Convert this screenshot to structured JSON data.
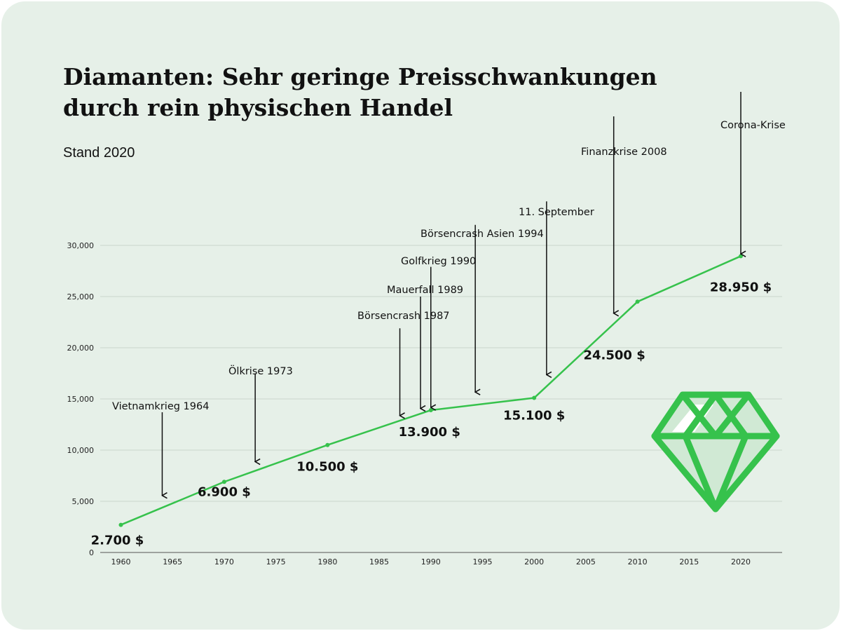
{
  "header": {
    "title": "Diamanten: Sehr geringe Preisschwankungen durch rein physischen Handel",
    "subtitle": "Stand 2020"
  },
  "colors": {
    "line": "#36c24c",
    "background": "#e6f0e8",
    "gem": "#36c24c"
  },
  "icons": [
    "diamond-icon"
  ],
  "chart_data": {
    "type": "line",
    "title": "Diamanten: Sehr geringe Preisschwankungen durch rein physischen Handel",
    "subtitle": "Stand 2020",
    "xlabel": "",
    "ylabel": "",
    "xlim": [
      1958,
      2024
    ],
    "ylim": [
      0,
      30000
    ],
    "x_ticks": [
      1960,
      1965,
      1970,
      1975,
      1980,
      1985,
      1990,
      1995,
      2000,
      2005,
      2010,
      2015,
      2020
    ],
    "y_ticks": [
      0,
      5000,
      10000,
      15000,
      20000,
      25000,
      30000
    ],
    "y_tick_labels": [
      "0",
      "5,000",
      "10,000",
      "15,000",
      "20,000",
      "25,000",
      "30,000"
    ],
    "grid": "horizontal",
    "series": [
      {
        "x": [
          1960,
          1970,
          1980,
          1990,
          2000,
          2010,
          2020
        ],
        "y": [
          2700,
          6900,
          10500,
          13900,
          15100,
          24500,
          28950
        ],
        "value_labels": [
          "2.700 $",
          "6.900 $",
          "10.500 $",
          "13.900 $",
          "15.100 $",
          "24.500 $",
          "28.950 $"
        ]
      }
    ],
    "annotations": [
      {
        "text": "Vietnamkrieg 1964",
        "x": 1964,
        "y_top": 13700,
        "y_tip": 5500
      },
      {
        "text": "Ölkrise 1973",
        "x": 1973,
        "y_top": 17500,
        "y_tip": 8800
      },
      {
        "text": "Börsencrash 1987",
        "x": 1987,
        "y_top": 21900,
        "y_tip": 13300
      },
      {
        "text": "Mauerfall 1989",
        "x": 1989,
        "y_top": 25000,
        "y_tip": 14000
      },
      {
        "text": "Golfkrieg 1990",
        "x": 1990,
        "y_top": 27900,
        "y_tip": 14100
      },
      {
        "text": "Börsencrash Asien 1994",
        "x": 1994.3,
        "y_top": 32000,
        "y_tip": 15600
      },
      {
        "text": "11. September",
        "x": 2001.2,
        "y_top": 34300,
        "y_tip": 17300
      },
      {
        "text": "Finanzkrise 2008",
        "x": 2007.7,
        "y_top": 42600,
        "y_tip": 23300
      },
      {
        "text": "Corona-Krise",
        "x": 2020,
        "y_top": 45000,
        "y_tip": 29100
      }
    ]
  }
}
